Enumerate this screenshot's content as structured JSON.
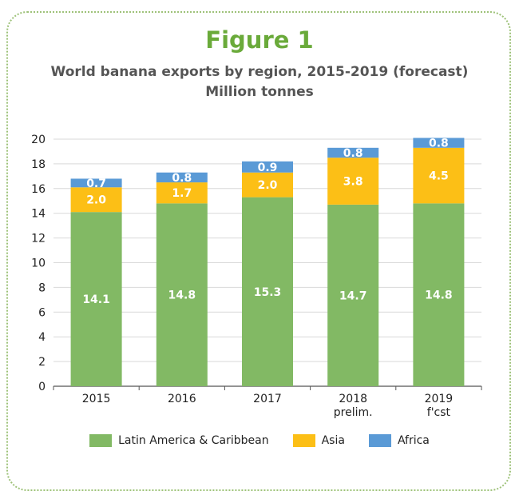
{
  "figure_label": "Figure 1",
  "title": "World banana exports by region, 2015-2019 (forecast)",
  "subtitle": "Million tonnes",
  "colors": {
    "latin_america": "#82b964",
    "asia": "#fcbf16",
    "africa": "#5a9ad6",
    "frame": "#9ec279",
    "figure_label": "#6aaa3a"
  },
  "chart_data": {
    "type": "bar",
    "stacked": true,
    "title": "World banana exports by region, 2015-2019 (forecast)",
    "ylabel": "Million tonnes",
    "xlabel": "",
    "ylim": [
      0,
      20
    ],
    "yticks": [
      0,
      2,
      4,
      6,
      8,
      10,
      12,
      14,
      16,
      18,
      20
    ],
    "grid": "horizontal",
    "legend_position": "bottom",
    "categories": [
      "2015",
      "2016",
      "2017",
      "2018\nprelim.",
      "2019\nf'cst"
    ],
    "category_lines": [
      [
        "2015"
      ],
      [
        "2016"
      ],
      [
        "2017"
      ],
      [
        "2018",
        "prelim."
      ],
      [
        "2019",
        "f'cst"
      ]
    ],
    "series": [
      {
        "name": "Latin America & Caribbean",
        "values": [
          14.1,
          14.8,
          15.3,
          14.7,
          14.8
        ],
        "labels": [
          "14.1",
          "14.8",
          "15.3",
          "14.7",
          "14.8"
        ]
      },
      {
        "name": "Asia",
        "values": [
          2.0,
          1.7,
          2.0,
          3.8,
          4.5
        ],
        "labels": [
          "2.0",
          "1.7",
          "2.0",
          "3.8",
          "4.5"
        ]
      },
      {
        "name": "Africa",
        "values": [
          0.7,
          0.8,
          0.9,
          0.8,
          0.8
        ],
        "labels": [
          "0.7",
          "0.8",
          "0.9",
          "0.8",
          "0.8"
        ]
      }
    ]
  }
}
